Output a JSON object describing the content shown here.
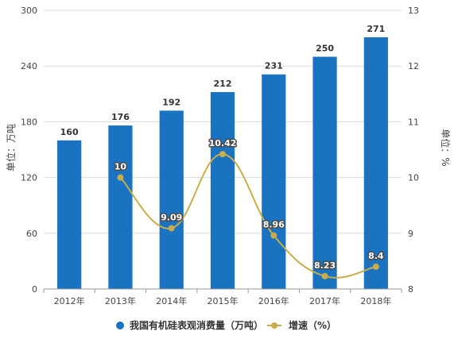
{
  "chart_data": {
    "type": "bar",
    "categories": [
      "2012年",
      "2013年",
      "2014年",
      "2015年",
      "2016年",
      "2017年",
      "2018年"
    ],
    "series": [
      {
        "name": "我国有机硅表观消费量（万吨）",
        "type": "bar",
        "axis": "left",
        "values": [
          160,
          176,
          192,
          212,
          231,
          250,
          271
        ],
        "color": "#1a73c1"
      },
      {
        "name": "增速（%）",
        "type": "line",
        "axis": "right",
        "values": [
          null,
          10,
          9.09,
          10.42,
          8.96,
          8.23,
          8.4
        ],
        "color": "#c9ad4c"
      }
    ],
    "ylabel": "单位：万吨",
    "y2label": "单位：%",
    "ylim": [
      0,
      300
    ],
    "y2lim": [
      8,
      13
    ],
    "yticks": [
      0,
      60,
      120,
      180,
      240,
      300
    ],
    "y2ticks": [
      8,
      9,
      10,
      11,
      12,
      13
    ],
    "grid": true,
    "legend_position": "bottom"
  }
}
